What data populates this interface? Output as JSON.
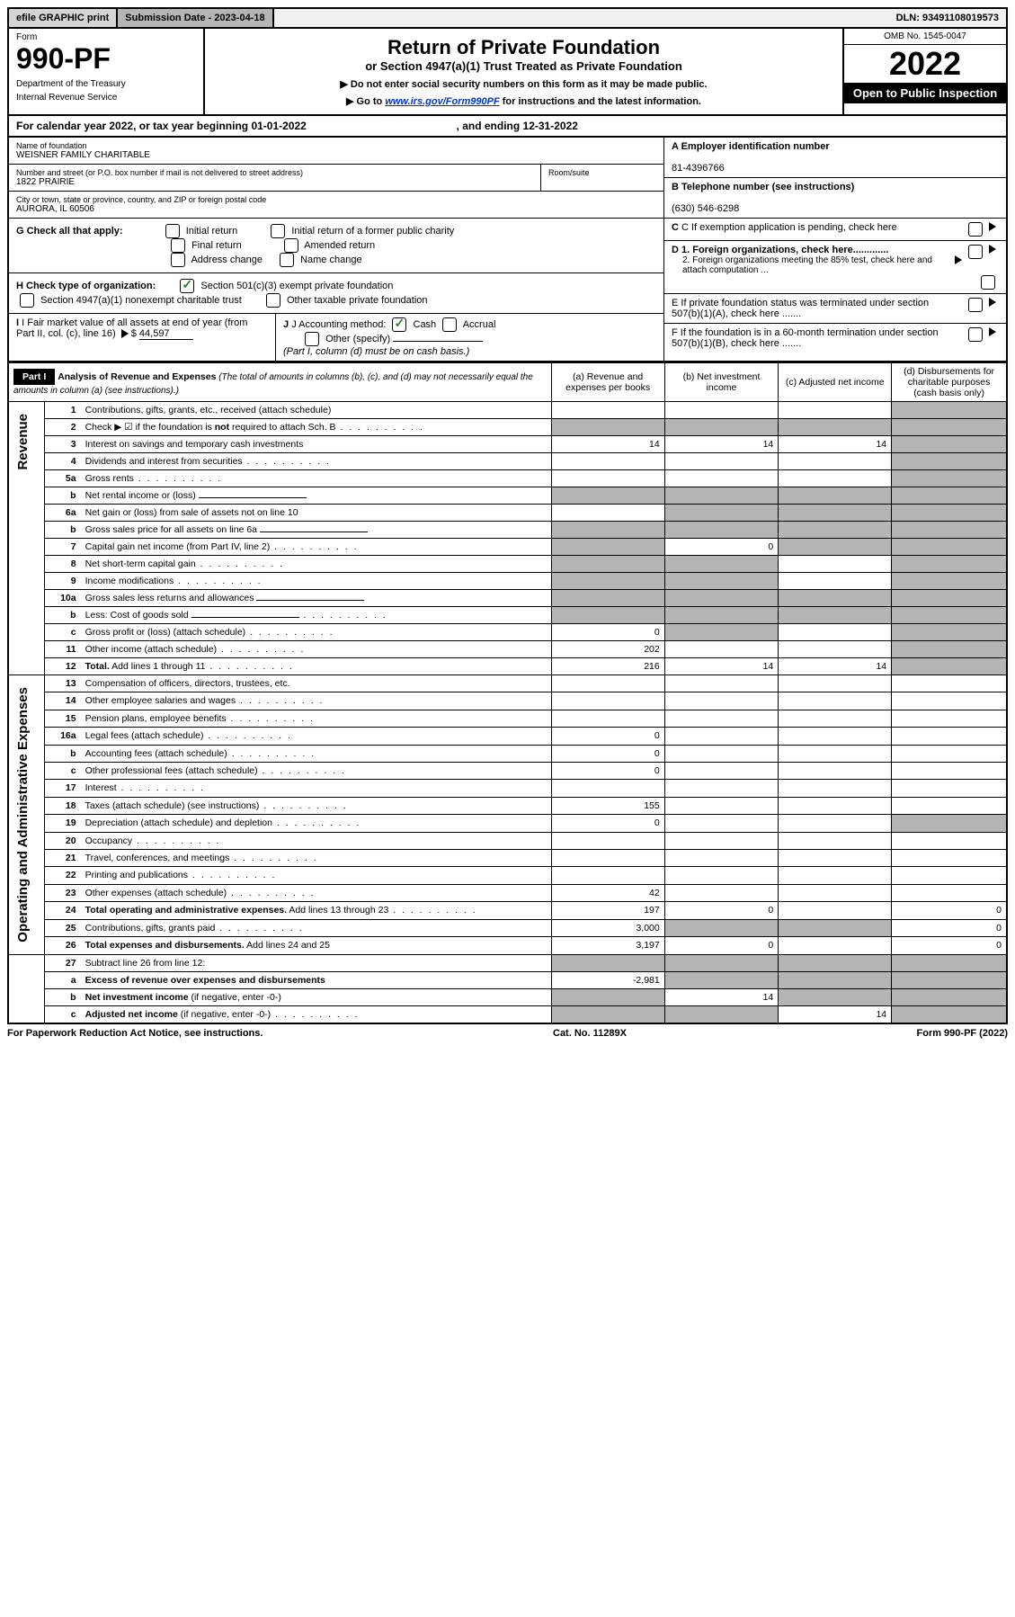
{
  "topbar": {
    "efile": "efile GRAPHIC print",
    "submission": "Submission Date - 2023-04-18",
    "dln": "DLN: 93491108019573"
  },
  "header": {
    "form_label": "Form",
    "form_number": "990-PF",
    "dept1": "Department of the Treasury",
    "dept2": "Internal Revenue Service",
    "title": "Return of Private Foundation",
    "subtitle": "or Section 4947(a)(1) Trust Treated as Private Foundation",
    "instr1": "▶ Do not enter social security numbers on this form as it may be made public.",
    "instr2_pre": "▶ Go to ",
    "instr2_link": "www.irs.gov/Form990PF",
    "instr2_post": " for instructions and the latest information.",
    "omb": "OMB No. 1545-0047",
    "year": "2022",
    "inspection": "Open to Public Inspection"
  },
  "cal_year": {
    "text_pre": "For calendar year 2022, or tax year beginning ",
    "begin": "01-01-2022",
    "text_mid": " , and ending ",
    "end": "12-31-2022"
  },
  "entity": {
    "name_label": "Name of foundation",
    "name": "WEISNER FAMILY CHARITABLE",
    "addr_label": "Number and street (or P.O. box number if mail is not delivered to street address)",
    "addr": "1822 PRAIRIE",
    "room_label": "Room/suite",
    "city_label": "City or town, state or province, country, and ZIP or foreign postal code",
    "city": "AURORA, IL  60506",
    "ein_label": "A Employer identification number",
    "ein": "81-4396766",
    "tel_label": "B Telephone number (see instructions)",
    "tel": "(630) 546-6298",
    "c_label": "C If exemption application is pending, check here",
    "d1": "D 1. Foreign organizations, check here.............",
    "d2": "2. Foreign organizations meeting the 85% test, check here and attach computation ...",
    "e_label": "E  If private foundation status was terminated under section 507(b)(1)(A), check here .......",
    "f_label": "F  If the foundation is in a 60-month termination under section 507(b)(1)(B), check here ......."
  },
  "checks": {
    "g_label": "G Check all that apply:",
    "initial": "Initial return",
    "initial_former": "Initial return of a former public charity",
    "final": "Final return",
    "amended": "Amended return",
    "address": "Address change",
    "name": "Name change",
    "h_label": "H Check type of organization:",
    "h1": "Section 501(c)(3) exempt private foundation",
    "h2": "Section 4947(a)(1) nonexempt charitable trust",
    "h3": "Other taxable private foundation",
    "i_label": "I Fair market value of all assets at end of year (from Part II, col. (c), line 16)",
    "i_value": "44,597",
    "j_label": "J Accounting method:",
    "j_cash": "Cash",
    "j_accrual": "Accrual",
    "j_other": "Other (specify)",
    "j_note": "(Part I, column (d) must be on cash basis.)"
  },
  "part1": {
    "label": "Part I",
    "title": "Analysis of Revenue and Expenses",
    "note": " (The total of amounts in columns (b), (c), and (d) may not necessarily equal the amounts in column (a) (see instructions).)",
    "col_a": "(a) Revenue and expenses per books",
    "col_b": "(b) Net investment income",
    "col_c": "(c) Adjusted net income",
    "col_d": "(d) Disbursements for charitable purposes (cash basis only)"
  },
  "sections": {
    "revenue": "Revenue",
    "expenses": "Operating and Administrative Expenses"
  },
  "rows": [
    {
      "n": "1",
      "desc": "Contributions, gifts, grants, etc., received (attach schedule)",
      "a": "",
      "b": "",
      "c": "",
      "d": "grey"
    },
    {
      "n": "2",
      "desc": "Check ▶ ☑ if the foundation is <b>not</b> required to attach Sch. B",
      "dotted": true,
      "a": "grey",
      "b": "grey",
      "c": "grey",
      "d": "grey"
    },
    {
      "n": "3",
      "desc": "Interest on savings and temporary cash investments",
      "a": "14",
      "b": "14",
      "c": "14",
      "d": "grey"
    },
    {
      "n": "4",
      "desc": "Dividends and interest from securities",
      "dotted": true,
      "a": "",
      "b": "",
      "c": "",
      "d": "grey"
    },
    {
      "n": "5a",
      "desc": "Gross rents",
      "dotted": true,
      "a": "",
      "b": "",
      "c": "",
      "d": "grey"
    },
    {
      "n": "b",
      "desc": "Net rental income or (loss)",
      "line": true,
      "a": "grey",
      "b": "grey",
      "c": "grey",
      "d": "grey"
    },
    {
      "n": "6a",
      "desc": "Net gain or (loss) from sale of assets not on line 10",
      "a": "",
      "b": "grey",
      "c": "grey",
      "d": "grey"
    },
    {
      "n": "b",
      "desc": "Gross sales price for all assets on line 6a",
      "line": true,
      "a": "grey",
      "b": "grey",
      "c": "grey",
      "d": "grey"
    },
    {
      "n": "7",
      "desc": "Capital gain net income (from Part IV, line 2)",
      "dotted": true,
      "a": "grey",
      "b": "0",
      "c": "grey",
      "d": "grey"
    },
    {
      "n": "8",
      "desc": "Net short-term capital gain",
      "dotted": true,
      "a": "grey",
      "b": "grey",
      "c": "",
      "d": "grey"
    },
    {
      "n": "9",
      "desc": "Income modifications",
      "dotted": true,
      "a": "grey",
      "b": "grey",
      "c": "",
      "d": "grey"
    },
    {
      "n": "10a",
      "desc": "Gross sales less returns and allowances",
      "line": true,
      "a": "grey",
      "b": "grey",
      "c": "grey",
      "d": "grey"
    },
    {
      "n": "b",
      "desc": "Less: Cost of goods sold",
      "dotted": true,
      "line": true,
      "a": "grey",
      "b": "grey",
      "c": "grey",
      "d": "grey"
    },
    {
      "n": "c",
      "desc": "Gross profit or (loss) (attach schedule)",
      "dotted": true,
      "a": "0",
      "b": "grey",
      "c": "",
      "d": "grey"
    },
    {
      "n": "11",
      "desc": "Other income (attach schedule)",
      "dotted": true,
      "a": "202",
      "b": "",
      "c": "",
      "d": "grey"
    },
    {
      "n": "12",
      "desc": "<b>Total.</b> Add lines 1 through 11",
      "dotted": true,
      "a": "216",
      "b": "14",
      "c": "14",
      "d": "grey"
    }
  ],
  "exp_rows": [
    {
      "n": "13",
      "desc": "Compensation of officers, directors, trustees, etc.",
      "a": "",
      "b": "",
      "c": "",
      "d": ""
    },
    {
      "n": "14",
      "desc": "Other employee salaries and wages",
      "dotted": true,
      "a": "",
      "b": "",
      "c": "",
      "d": ""
    },
    {
      "n": "15",
      "desc": "Pension plans, employee benefits",
      "dotted": true,
      "a": "",
      "b": "",
      "c": "",
      "d": ""
    },
    {
      "n": "16a",
      "desc": "Legal fees (attach schedule)",
      "dotted": true,
      "a": "0",
      "b": "",
      "c": "",
      "d": ""
    },
    {
      "n": "b",
      "desc": "Accounting fees (attach schedule)",
      "dotted": true,
      "a": "0",
      "b": "",
      "c": "",
      "d": ""
    },
    {
      "n": "c",
      "desc": "Other professional fees (attach schedule)",
      "dotted": true,
      "a": "0",
      "b": "",
      "c": "",
      "d": ""
    },
    {
      "n": "17",
      "desc": "Interest",
      "dotted": true,
      "a": "",
      "b": "",
      "c": "",
      "d": ""
    },
    {
      "n": "18",
      "desc": "Taxes (attach schedule) (see instructions)",
      "dotted": true,
      "a": "155",
      "b": "",
      "c": "",
      "d": ""
    },
    {
      "n": "19",
      "desc": "Depreciation (attach schedule) and depletion",
      "dotted": true,
      "a": "0",
      "b": "",
      "c": "",
      "d": "grey"
    },
    {
      "n": "20",
      "desc": "Occupancy",
      "dotted": true,
      "a": "",
      "b": "",
      "c": "",
      "d": ""
    },
    {
      "n": "21",
      "desc": "Travel, conferences, and meetings",
      "dotted": true,
      "a": "",
      "b": "",
      "c": "",
      "d": ""
    },
    {
      "n": "22",
      "desc": "Printing and publications",
      "dotted": true,
      "a": "",
      "b": "",
      "c": "",
      "d": ""
    },
    {
      "n": "23",
      "desc": "Other expenses (attach schedule)",
      "dotted": true,
      "a": "42",
      "b": "",
      "c": "",
      "d": ""
    },
    {
      "n": "24",
      "desc": "<b>Total operating and administrative expenses.</b> Add lines 13 through 23",
      "dotted": true,
      "a": "197",
      "b": "0",
      "c": "",
      "d": "0"
    },
    {
      "n": "25",
      "desc": "Contributions, gifts, grants paid",
      "dotted": true,
      "a": "3,000",
      "b": "grey",
      "c": "grey",
      "d": "0"
    },
    {
      "n": "26",
      "desc": "<b>Total expenses and disbursements.</b> Add lines 24 and 25",
      "a": "3,197",
      "b": "0",
      "c": "",
      "d": "0"
    }
  ],
  "bottom_rows": [
    {
      "n": "27",
      "desc": "Subtract line 26 from line 12:",
      "a": "grey",
      "b": "grey",
      "c": "grey",
      "d": "grey"
    },
    {
      "n": "a",
      "desc": "<b>Excess of revenue over expenses and disbursements</b>",
      "a": "-2,981",
      "b": "grey",
      "c": "grey",
      "d": "grey"
    },
    {
      "n": "b",
      "desc": "<b>Net investment income</b> (if negative, enter -0-)",
      "a": "grey",
      "b": "14",
      "c": "grey",
      "d": "grey"
    },
    {
      "n": "c",
      "desc": "<b>Adjusted net income</b> (if negative, enter -0-)",
      "dotted": true,
      "a": "grey",
      "b": "grey",
      "c": "14",
      "d": "grey"
    }
  ],
  "footer": {
    "left": "For Paperwork Reduction Act Notice, see instructions.",
    "mid": "Cat. No. 11289X",
    "right": "Form 990-PF (2022)"
  }
}
